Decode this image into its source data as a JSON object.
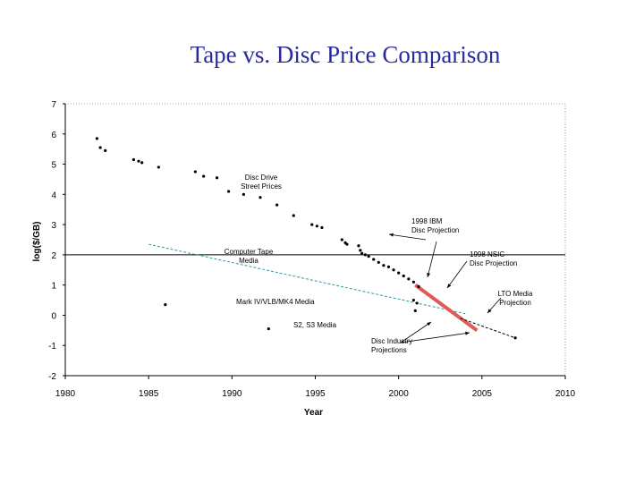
{
  "title": "Tape vs. Disc Price Comparison",
  "chart_data": {
    "type": "scatter",
    "xlabel": "Year",
    "ylabel": "log($/GB)",
    "xlim": [
      1980,
      2010
    ],
    "ylim": [
      -2,
      7
    ],
    "xticks": [
      1980,
      1985,
      1990,
      1995,
      2000,
      2005,
      2010
    ],
    "yticks": [
      -2,
      -1,
      0,
      1,
      2,
      3,
      4,
      5,
      6,
      7
    ],
    "grid": false,
    "reference_line_y": 2,
    "series": [
      {
        "points": [
          [
            1981.9,
            5.85
          ],
          [
            1982.1,
            5.55
          ],
          [
            1982.4,
            5.45
          ],
          [
            1984.1,
            5.15
          ],
          [
            1984.4,
            5.1
          ],
          [
            1984.6,
            5.05
          ],
          [
            1985.6,
            4.9
          ],
          [
            1987.8,
            4.75
          ],
          [
            1988.3,
            4.6
          ],
          [
            1989.1,
            4.55
          ],
          [
            1989.8,
            4.1
          ],
          [
            1990.7,
            4.0
          ],
          [
            1991.7,
            3.9
          ],
          [
            1992.7,
            3.65
          ],
          [
            1993.7,
            3.3
          ],
          [
            1994.8,
            3.0
          ],
          [
            1995.1,
            2.95
          ],
          [
            1995.4,
            2.9
          ],
          [
            1996.6,
            2.5
          ],
          [
            1996.8,
            2.4
          ],
          [
            1996.9,
            2.35
          ],
          [
            1997.6,
            2.3
          ],
          [
            1997.7,
            2.15
          ],
          [
            1997.8,
            2.05
          ],
          [
            1998.0,
            2.0
          ],
          [
            1998.2,
            1.95
          ],
          [
            1998.5,
            1.85
          ],
          [
            1998.8,
            1.75
          ],
          [
            1999.1,
            1.65
          ],
          [
            1999.4,
            1.6
          ],
          [
            1999.7,
            1.5
          ],
          [
            2000.0,
            1.4
          ],
          [
            2000.3,
            1.3
          ],
          [
            2000.6,
            1.2
          ],
          [
            2000.9,
            1.1
          ],
          [
            2001.2,
            0.95
          ],
          [
            2000.9,
            0.5
          ],
          [
            2001.1,
            0.4
          ],
          [
            2001.0,
            0.15
          ]
        ]
      },
      {
        "points": [
          [
            1986.0,
            0.35
          ],
          [
            1992.2,
            -0.45
          ]
        ]
      },
      {
        "points": [
          [
            2007.0,
            -0.75
          ]
        ]
      }
    ],
    "lines": [
      {
        "name": "Computer Tape Media",
        "style": "dashed",
        "color": "#2a9aa8",
        "points": [
          [
            1985,
            2.35
          ],
          [
            2004,
            0.05
          ]
        ]
      },
      {
        "name": "Disc Industry Projections",
        "style": "solid",
        "color": "#e05a5a",
        "points": [
          [
            2001,
            1.0
          ],
          [
            2004.7,
            -0.5
          ]
        ]
      },
      {
        "name": "LTO Media Projection",
        "style": "dashed",
        "color": "#000000",
        "points": [
          [
            2003.7,
            -0.1
          ],
          [
            2007.0,
            -0.75
          ]
        ]
      }
    ],
    "annotations": [
      {
        "lines": [
          "Disc Drive",
          "Street Prices"
        ]
      },
      {
        "lines": [
          "1998 IBM",
          "Disc Projection"
        ]
      },
      {
        "lines": [
          "1998 NSIC",
          "Disc Projection"
        ]
      },
      {
        "lines": [
          "Computer Tape",
          "Media"
        ]
      },
      {
        "lines": [
          "LTO Media",
          "Projection"
        ]
      },
      {
        "lines": [
          "Mark IV/VLB/MK4 Media"
        ]
      },
      {
        "lines": [
          "S2, S3 Media"
        ]
      },
      {
        "lines": [
          "Disc Industry",
          "Projections"
        ]
      }
    ]
  }
}
